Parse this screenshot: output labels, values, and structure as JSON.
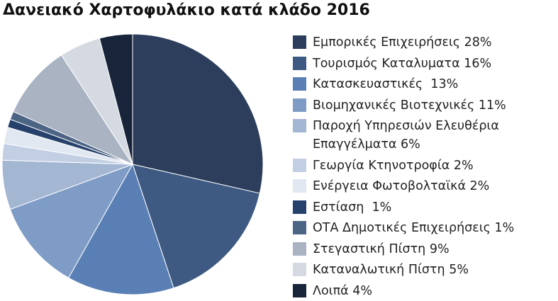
{
  "chart_data": {
    "type": "pie",
    "title": "Δανειακό Χαρτοφυλάκιο κατά κλάδο 2016",
    "categories": [
      "Εμπορικές Επιχειρήσεις 28%",
      "Τουρισμός Καταλυματα 16%",
      "Κατασκευαστικές  13%",
      "Βιομηχανικές Βιοτεχνικές 11%",
      "Παροχή Υπηρεσιών Ελευθέρια Επαγγέλματα 6%",
      "Γεωργία Κτηνοτροφία 2%",
      "Ενέργεια Φωτοβολταϊκά 2%",
      "Εστίαση  1%",
      "ΟΤΑ Δημοτικές Επιχειρήσεις 1%",
      "Στεγαστική Πίστη 9%",
      "Καταναλωτική Πίστη 5%",
      "Λοιπά 4%"
    ],
    "values": [
      28,
      16,
      13,
      11,
      6,
      2,
      2,
      1,
      1,
      9,
      5,
      4
    ],
    "colors": [
      "#2c3e5c",
      "#3e5a82",
      "#5a7fb4",
      "#7f9cc6",
      "#a3b6d2",
      "#c2cfe3",
      "#e1e8f1",
      "#26416b",
      "#4d6585",
      "#a9b3c2",
      "#d5dae2",
      "#18243a"
    ]
  }
}
